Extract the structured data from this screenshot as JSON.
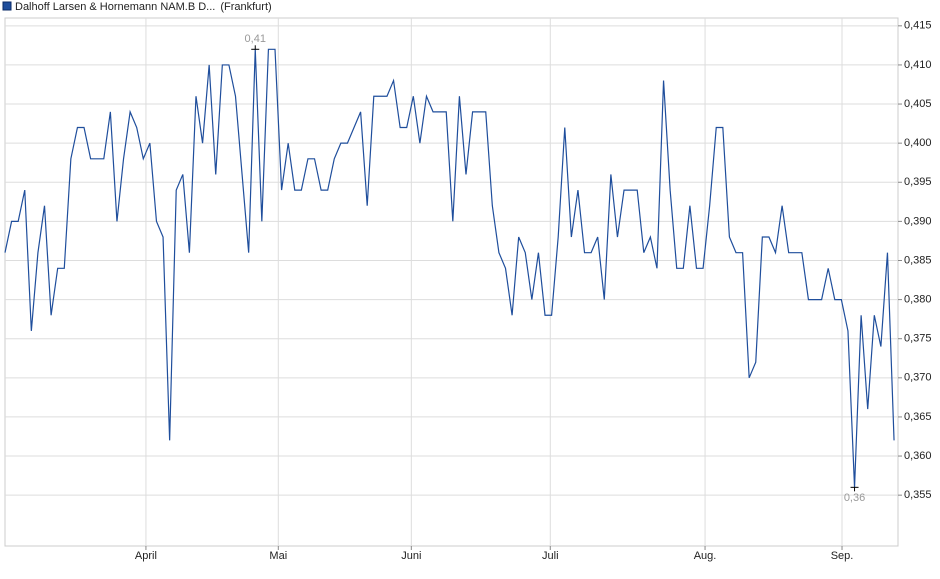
{
  "chart_data": {
    "type": "line",
    "legend": "Dalhoff Larsen & Hornemann NAM.B D...",
    "exchange": "(Frankfurt)",
    "color": "#1f4e9c",
    "grid": true,
    "values": [
      0.386,
      0.39,
      0.39,
      0.394,
      0.376,
      0.386,
      0.392,
      0.378,
      0.384,
      0.384,
      0.398,
      0.402,
      0.402,
      0.398,
      0.398,
      0.398,
      0.404,
      0.39,
      0.398,
      0.404,
      0.402,
      0.398,
      0.4,
      0.39,
      0.388,
      0.362,
      0.394,
      0.396,
      0.386,
      0.406,
      0.4,
      0.41,
      0.396,
      0.41,
      0.41,
      0.406,
      0.396,
      0.386,
      0.412,
      0.39,
      0.412,
      0.412,
      0.394,
      0.4,
      0.394,
      0.394,
      0.398,
      0.398,
      0.394,
      0.394,
      0.398,
      0.4,
      0.4,
      0.402,
      0.404,
      0.392,
      0.406,
      0.406,
      0.406,
      0.408,
      0.402,
      0.402,
      0.406,
      0.4,
      0.406,
      0.404,
      0.404,
      0.404,
      0.39,
      0.406,
      0.396,
      0.404,
      0.404,
      0.404,
      0.392,
      0.386,
      0.384,
      0.378,
      0.388,
      0.386,
      0.38,
      0.386,
      0.378,
      0.378,
      0.388,
      0.402,
      0.388,
      0.394,
      0.386,
      0.386,
      0.388,
      0.38,
      0.396,
      0.388,
      0.394,
      0.394,
      0.394,
      0.386,
      0.388,
      0.384,
      0.408,
      0.394,
      0.384,
      0.384,
      0.392,
      0.384,
      0.384,
      0.392,
      0.402,
      0.402,
      0.388,
      0.386,
      0.386,
      0.37,
      0.372,
      0.388,
      0.388,
      0.386,
      0.392,
      0.386,
      0.386,
      0.386,
      0.38,
      0.38,
      0.38,
      0.384,
      0.38,
      0.38,
      0.376,
      0.356,
      0.378,
      0.366,
      0.378,
      0.374,
      0.386,
      0.362
    ],
    "xlim": [
      0,
      135.6
    ],
    "xticks": [
      {
        "value": 21.4,
        "label": "April"
      },
      {
        "value": 41.5,
        "label": "Mai"
      },
      {
        "value": 61.7,
        "label": "Juni"
      },
      {
        "value": 82.8,
        "label": "Juli"
      },
      {
        "value": 106.3,
        "label": "Aug."
      },
      {
        "value": 127.1,
        "label": "Sep."
      }
    ],
    "ylim": [
      0.3485,
      0.416
    ],
    "yticks": [
      {
        "value": 0.355,
        "label": "0,355"
      },
      {
        "value": 0.36,
        "label": "0,360"
      },
      {
        "value": 0.365,
        "label": "0,365"
      },
      {
        "value": 0.37,
        "label": "0,370"
      },
      {
        "value": 0.375,
        "label": "0,375"
      },
      {
        "value": 0.38,
        "label": "0,380"
      },
      {
        "value": 0.385,
        "label": "0,385"
      },
      {
        "value": 0.39,
        "label": "0,390"
      },
      {
        "value": 0.395,
        "label": "0,395"
      },
      {
        "value": 0.4,
        "label": "0,400"
      },
      {
        "value": 0.405,
        "label": "0,405"
      },
      {
        "value": 0.41,
        "label": "0,410"
      },
      {
        "value": 0.415,
        "label": "0,415"
      }
    ],
    "annotations": [
      {
        "label": "0,41",
        "value": 0.412,
        "position": "above"
      },
      {
        "label": "0,36",
        "value": 0.356,
        "position": "below"
      }
    ]
  }
}
